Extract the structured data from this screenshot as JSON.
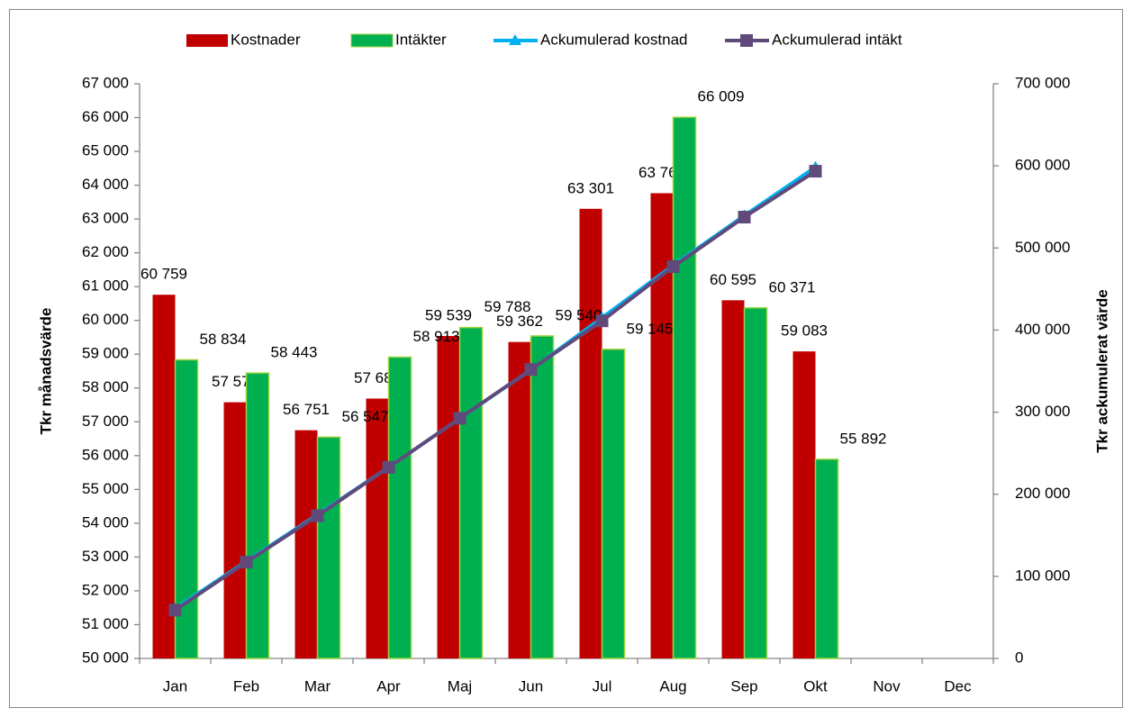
{
  "chart_data": {
    "type": "bar",
    "categories": [
      "Jan",
      "Feb",
      "Mar",
      "Apr",
      "Maj",
      "Jun",
      "Jul",
      "Aug",
      "Sep",
      "Okt",
      "Nov",
      "Dec"
    ],
    "y_label": "Tkr månadsvärde",
    "y2_label": "Tkr ackumulerat värde",
    "series": [
      {
        "name": "Kostnader",
        "type": "bar",
        "color": "#c00000",
        "values": [
          60759,
          57578,
          56751,
          57688,
          59539,
          59362,
          63301,
          63763,
          60595,
          59083,
          null,
          null
        ],
        "value_labels": [
          "60 759",
          "57 578",
          "56 751",
          "57 688",
          "59 539",
          "59 362",
          "63 301",
          "63 763",
          "60 595",
          "59 083",
          null,
          null
        ]
      },
      {
        "name": "Intäkter",
        "type": "bar",
        "color": "#00b050",
        "values": [
          58834,
          58443,
          56547,
          58913,
          59788,
          59540,
          59145,
          66009,
          60371,
          55892,
          null,
          null
        ],
        "value_labels": [
          "58 834",
          "58 443",
          "56 547",
          "58 913",
          "59 788",
          "59 540",
          "59 145",
          "66 009",
          "60 371",
          "55 892",
          null,
          null
        ]
      },
      {
        "name": "Ackumulerad kostnad",
        "type": "line",
        "axis": "y2",
        "color": "#00b0f0",
        "marker": "triangle",
        "values": [
          60759,
          118337,
          175088,
          232776,
          292315,
          351677,
          414978,
          478741,
          539336,
          598419,
          null,
          null
        ]
      },
      {
        "name": "Ackumulerad intäkt",
        "type": "line",
        "axis": "y2",
        "color": "#604a7b",
        "marker": "square",
        "values": [
          58834,
          117277,
          173824,
          232737,
          292525,
          352065,
          411210,
          477219,
          537590,
          593482,
          null,
          null
        ]
      }
    ],
    "ylim": [
      50000,
      67000
    ],
    "yticks": [
      {
        "value": 50000,
        "label": "50 000"
      },
      {
        "value": 51000,
        "label": "51 000"
      },
      {
        "value": 52000,
        "label": "52 000"
      },
      {
        "value": 53000,
        "label": "53 000"
      },
      {
        "value": 54000,
        "label": "54 000"
      },
      {
        "value": 55000,
        "label": "55 000"
      },
      {
        "value": 56000,
        "label": "56 000"
      },
      {
        "value": 57000,
        "label": "57 000"
      },
      {
        "value": 58000,
        "label": "58 000"
      },
      {
        "value": 59000,
        "label": "59 000"
      },
      {
        "value": 60000,
        "label": "60 000"
      },
      {
        "value": 61000,
        "label": "61 000"
      },
      {
        "value": 62000,
        "label": "62 000"
      },
      {
        "value": 63000,
        "label": "63 000"
      },
      {
        "value": 64000,
        "label": "64 000"
      },
      {
        "value": 65000,
        "label": "65 000"
      },
      {
        "value": 66000,
        "label": "66 000"
      },
      {
        "value": 67000,
        "label": "67 000"
      }
    ],
    "y2lim": [
      0,
      700000
    ],
    "y2ticks": [
      0,
      {
        "value": 100000,
        "label": "100 000"
      },
      {
        "value": 200000,
        "label": "200 000"
      },
      {
        "value": 300000,
        "label": "300 000"
      },
      {
        "value": 400000,
        "label": "400 000"
      },
      {
        "value": 500000,
        "label": "500 000"
      },
      {
        "value": 600000,
        "label": "600 000"
      },
      {
        "value": 700000,
        "label": "700 000"
      }
    ],
    "legend": "top",
    "grid": false
  }
}
